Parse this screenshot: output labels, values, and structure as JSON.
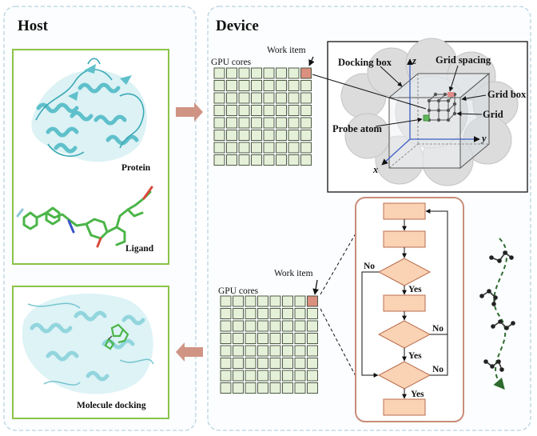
{
  "host": {
    "title": "Host",
    "protein_label": "Protein",
    "ligand_label": "Ligand",
    "docking_label": "Molecule docking"
  },
  "device": {
    "title": "Device",
    "top": {
      "work_item": "Work item",
      "gpu_cores": "GPU cores",
      "grid_rows": 8,
      "grid_cols": 8
    },
    "box": {
      "docking_box": "Docking box",
      "grid_spacing": "Grid spacing",
      "grid_box": "Grid box",
      "grid": "Grid",
      "probe_atom": "Probe atom",
      "axis_z": "z",
      "axis_y": "y",
      "axis_x": "x"
    },
    "bottom": {
      "work_item": "Work item",
      "gpu_cores": "GPU cores",
      "grid_rows": 8,
      "grid_cols": 8
    },
    "flow": {
      "no_1": "No",
      "yes_1": "Yes",
      "no_2": "No",
      "yes_2": "Yes",
      "no_3": "No",
      "yes_3": "Yes"
    }
  },
  "colors": {
    "panel_border": "#b9d3e0",
    "image_border": "#8cc34a",
    "cell_fill": "#e4f0d8",
    "cell_stroke": "#3d4a35",
    "work_item_fill": "#d9907f",
    "flow_fill": "#fad2b4",
    "flow_stroke": "#b86e4e",
    "flow_border": "#c98d79",
    "arrow": "#d09484",
    "protein": "#7ecdd6",
    "ligand": "#4bb548",
    "dashed_curve": "#2f6b2f"
  }
}
